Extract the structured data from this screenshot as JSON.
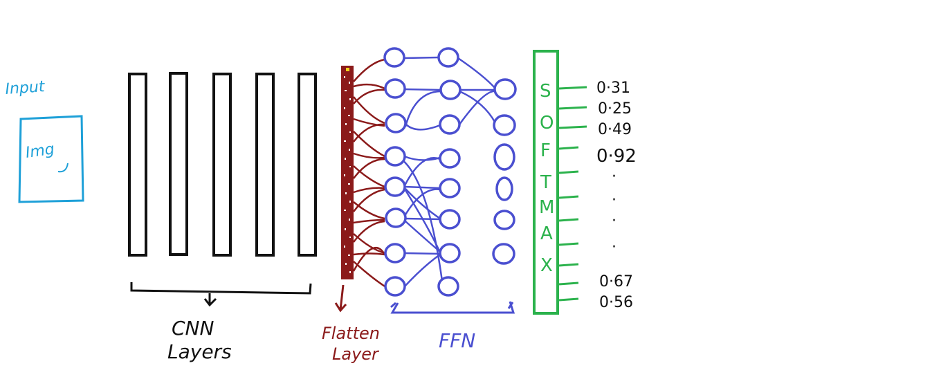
{
  "input": {
    "label": "Input",
    "image_label": "Img"
  },
  "cnn": {
    "layer_count": 5,
    "label_line1": "CNN",
    "label_line2": "Layers"
  },
  "flatten": {
    "label_line1": "Flatten",
    "label_line2": "Layer"
  },
  "ffn": {
    "label": "FFN"
  },
  "softmax": {
    "letters": [
      "S",
      "O",
      "F",
      "T",
      "M",
      "A",
      "X"
    ]
  },
  "outputs": [
    "0·31",
    "0·25",
    "0·49",
    "0·92",
    "·",
    "·",
    "·",
    "·",
    "0·67",
    "0·56"
  ],
  "colors": {
    "input": "#1ea0d8",
    "cnn": "#111111",
    "flatten": "#8b1a1a",
    "ffn": "#4a4fd0",
    "softmax": "#2bb24c",
    "text": "#111111"
  }
}
